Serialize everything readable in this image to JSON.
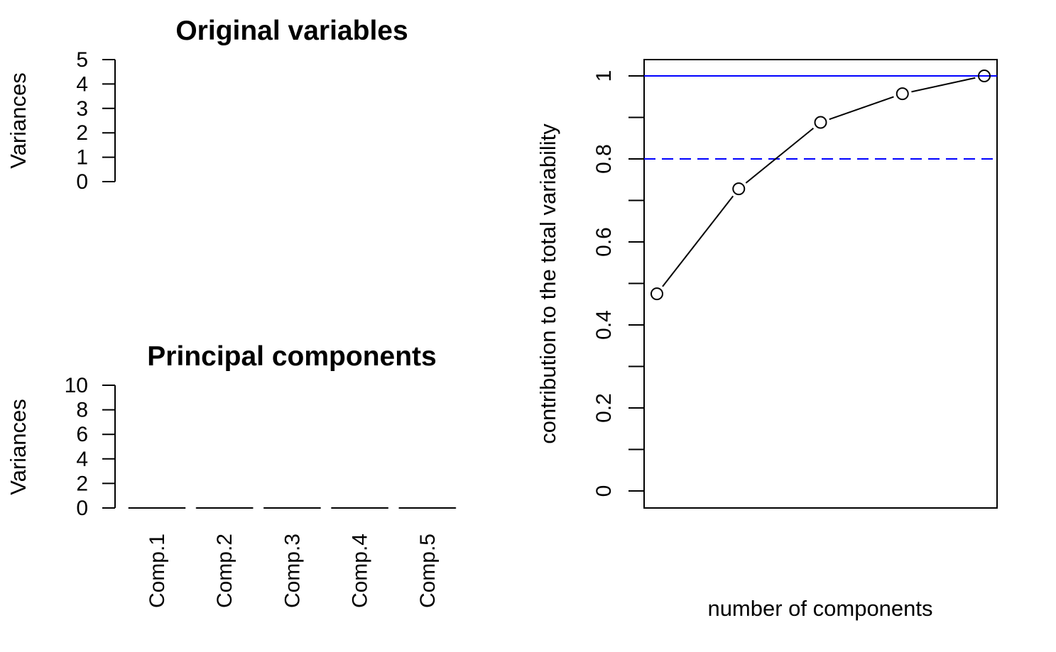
{
  "chart_data": [
    {
      "type": "bar",
      "title": "Original variables",
      "xlabel": "",
      "ylabel": "Variances",
      "categories": [],
      "values": [],
      "ylim": [
        0,
        5
      ],
      "yticks": [
        "0",
        "1",
        "2",
        "3",
        "4",
        "5"
      ],
      "grid": false
    },
    {
      "type": "bar",
      "title": "Principal components",
      "xlabel": "",
      "ylabel": "Variances",
      "categories": [
        "Comp.1",
        "Comp.2",
        "Comp.3",
        "Comp.4",
        "Comp.5"
      ],
      "values": [
        0,
        0,
        0,
        0,
        0
      ],
      "ylim": [
        0,
        10
      ],
      "yticks": [
        "0",
        "2",
        "4",
        "6",
        "8",
        "10"
      ],
      "grid": false
    },
    {
      "type": "line",
      "title": "",
      "xlabel": "number of components",
      "ylabel": "contribution to the total variability",
      "x": [
        1,
        2,
        3,
        4,
        5
      ],
      "y": [
        0.475,
        0.728,
        0.888,
        0.957,
        1.0
      ],
      "ylim": [
        0,
        1
      ],
      "yticks": [
        "0",
        "0.2",
        "0.4",
        "0.6",
        "0.8",
        "1"
      ],
      "reference_lines": [
        {
          "y": 1.0,
          "style": "solid",
          "color": "#0000ff"
        },
        {
          "y": 0.8,
          "style": "dashed",
          "color": "#0000ff"
        }
      ],
      "marker": "open-circle",
      "grid": false
    }
  ]
}
